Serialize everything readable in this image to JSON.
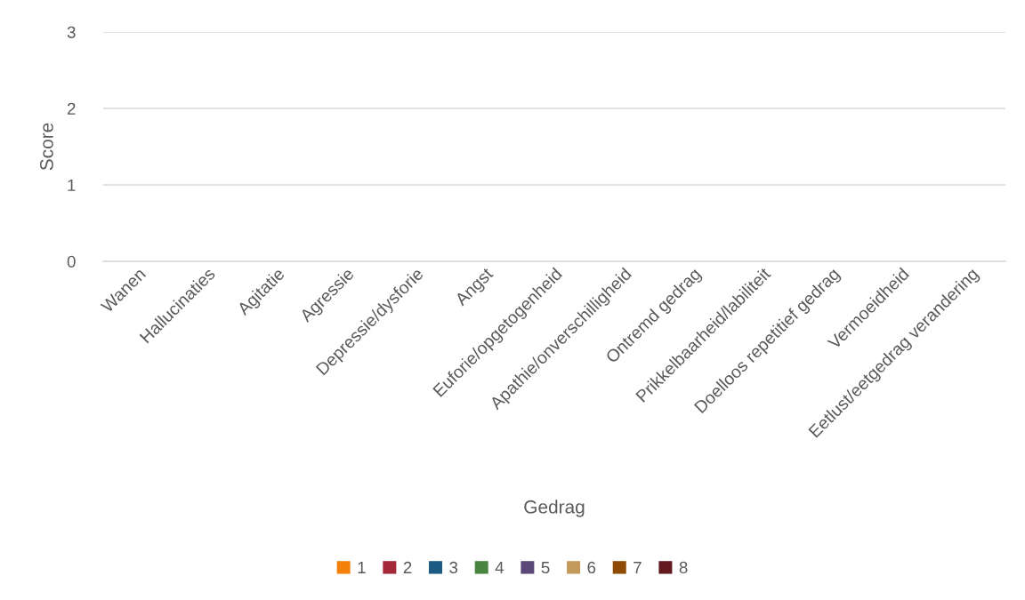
{
  "chart_data": {
    "type": "bar",
    "ylabel": "Score",
    "xlabel": "Gedrag",
    "categories": [
      "Wanen",
      "Hallucinaties",
      "Agitatie",
      "Agressie",
      "Depressie/dysforie",
      "Angst",
      "Euforie/opgetogenheid",
      "Apathie/onverschilligheid",
      "Ontremd gedrag",
      "Prikkelbaarheid/labiliteit",
      "Doelloos repetitief gedrag",
      "Vermoeidheid",
      "Eetlust/eetgedrag verandering"
    ],
    "series": [
      {
        "name": "1",
        "color": "#f2800a",
        "values": [
          null,
          null,
          null,
          null,
          null,
          null,
          null,
          null,
          null,
          null,
          null,
          null,
          null
        ]
      },
      {
        "name": "2",
        "color": "#a5273a",
        "values": [
          null,
          null,
          null,
          null,
          null,
          null,
          null,
          null,
          null,
          null,
          null,
          null,
          null
        ]
      },
      {
        "name": "3",
        "color": "#1b5a82",
        "values": [
          null,
          null,
          null,
          null,
          null,
          null,
          null,
          null,
          null,
          null,
          null,
          null,
          null
        ]
      },
      {
        "name": "4",
        "color": "#4a8540",
        "values": [
          null,
          null,
          null,
          null,
          null,
          null,
          null,
          null,
          null,
          null,
          null,
          null,
          null
        ]
      },
      {
        "name": "5",
        "color": "#5c4878",
        "values": [
          null,
          null,
          null,
          null,
          null,
          null,
          null,
          null,
          null,
          null,
          null,
          null,
          null
        ]
      },
      {
        "name": "6",
        "color": "#c49a5c",
        "values": [
          null,
          null,
          null,
          null,
          null,
          null,
          null,
          null,
          null,
          null,
          null,
          null,
          null
        ]
      },
      {
        "name": "7",
        "color": "#8f4a05",
        "values": [
          null,
          null,
          null,
          null,
          null,
          null,
          null,
          null,
          null,
          null,
          null,
          null,
          null
        ]
      },
      {
        "name": "8",
        "color": "#621a20",
        "values": [
          null,
          null,
          null,
          null,
          null,
          null,
          null,
          null,
          null,
          null,
          null,
          null,
          null
        ]
      }
    ],
    "ylim": [
      0,
      3
    ],
    "yticks": [
      0,
      1,
      2,
      3
    ],
    "grid": "y",
    "legend": "bottom"
  }
}
